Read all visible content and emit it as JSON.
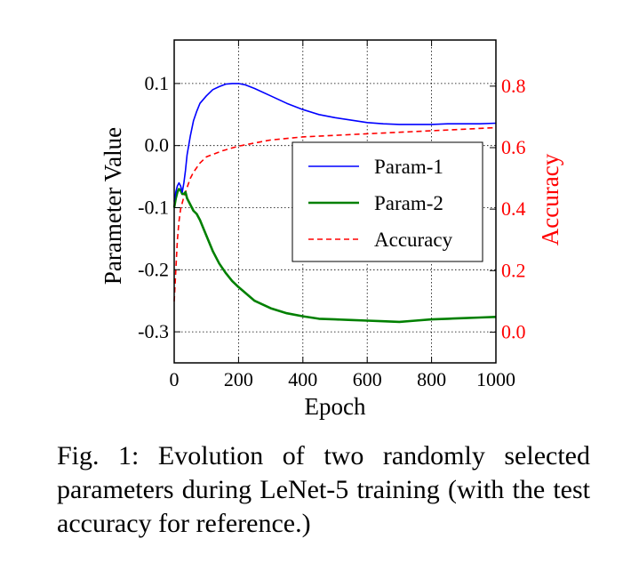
{
  "caption": "Fig. 1: Evolution of two randomly selected parameters during LeNet-5 training (with the test accuracy for reference.)",
  "chart_data": {
    "type": "line",
    "xlabel": "Epoch",
    "ylabel": "Parameter Value",
    "y2label": "Accuracy",
    "xlim": [
      0,
      1000
    ],
    "ylim": [
      -0.35,
      0.17
    ],
    "y2lim": [
      -0.1,
      0.95
    ],
    "xticks": [
      "0",
      "200",
      "400",
      "600",
      "800",
      "1000"
    ],
    "yticks": [
      "0.1",
      "0.0",
      "-0.1",
      "-0.2",
      "-0.3"
    ],
    "y2ticks": [
      "0.8",
      "0.6",
      "0.4",
      "0.2",
      "0.0"
    ],
    "grid": true,
    "legend_position": "center-right",
    "colors": {
      "param1": "#0000ff",
      "param2": "#008000",
      "accuracy": "#ff0000",
      "secondary_axis": "#ff0000"
    },
    "series": [
      {
        "name": "Param-1",
        "axis": "left",
        "style": "solid",
        "x": [
          0,
          5,
          10,
          15,
          20,
          25,
          30,
          35,
          40,
          50,
          60,
          70,
          80,
          100,
          120,
          140,
          160,
          180,
          200,
          220,
          250,
          300,
          350,
          400,
          450,
          500,
          550,
          600,
          650,
          700,
          750,
          800,
          850,
          900,
          950,
          1000
        ],
        "y": [
          -0.09,
          -0.075,
          -0.065,
          -0.06,
          -0.065,
          -0.075,
          -0.06,
          -0.04,
          -0.015,
          0.015,
          0.04,
          0.055,
          0.068,
          0.08,
          0.09,
          0.095,
          0.099,
          0.1,
          0.1,
          0.098,
          0.092,
          0.08,
          0.068,
          0.058,
          0.05,
          0.045,
          0.041,
          0.037,
          0.035,
          0.034,
          0.034,
          0.034,
          0.035,
          0.035,
          0.035,
          0.036
        ]
      },
      {
        "name": "Param-2",
        "axis": "left",
        "style": "solid",
        "x": [
          0,
          5,
          10,
          15,
          20,
          25,
          30,
          35,
          40,
          50,
          60,
          70,
          80,
          100,
          120,
          140,
          160,
          180,
          200,
          250,
          300,
          350,
          400,
          450,
          500,
          550,
          600,
          650,
          700,
          750,
          800,
          850,
          900,
          950,
          1000
        ],
        "y": [
          -0.1,
          -0.085,
          -0.075,
          -0.07,
          -0.072,
          -0.078,
          -0.078,
          -0.075,
          -0.085,
          -0.095,
          -0.105,
          -0.11,
          -0.12,
          -0.145,
          -0.17,
          -0.19,
          -0.205,
          -0.218,
          -0.228,
          -0.25,
          -0.262,
          -0.27,
          -0.275,
          -0.279,
          -0.28,
          -0.281,
          -0.282,
          -0.283,
          -0.284,
          -0.282,
          -0.28,
          -0.279,
          -0.278,
          -0.277,
          -0.276
        ]
      },
      {
        "name": "Accuracy",
        "axis": "right",
        "style": "dashed",
        "x": [
          0,
          5,
          10,
          15,
          20,
          30,
          40,
          50,
          60,
          80,
          100,
          150,
          200,
          250,
          300,
          400,
          500,
          600,
          700,
          800,
          900,
          1000
        ],
        "y": [
          0.1,
          0.2,
          0.3,
          0.36,
          0.4,
          0.44,
          0.47,
          0.5,
          0.52,
          0.55,
          0.57,
          0.59,
          0.605,
          0.615,
          0.625,
          0.635,
          0.64,
          0.645,
          0.65,
          0.655,
          0.66,
          0.665
        ]
      }
    ]
  }
}
